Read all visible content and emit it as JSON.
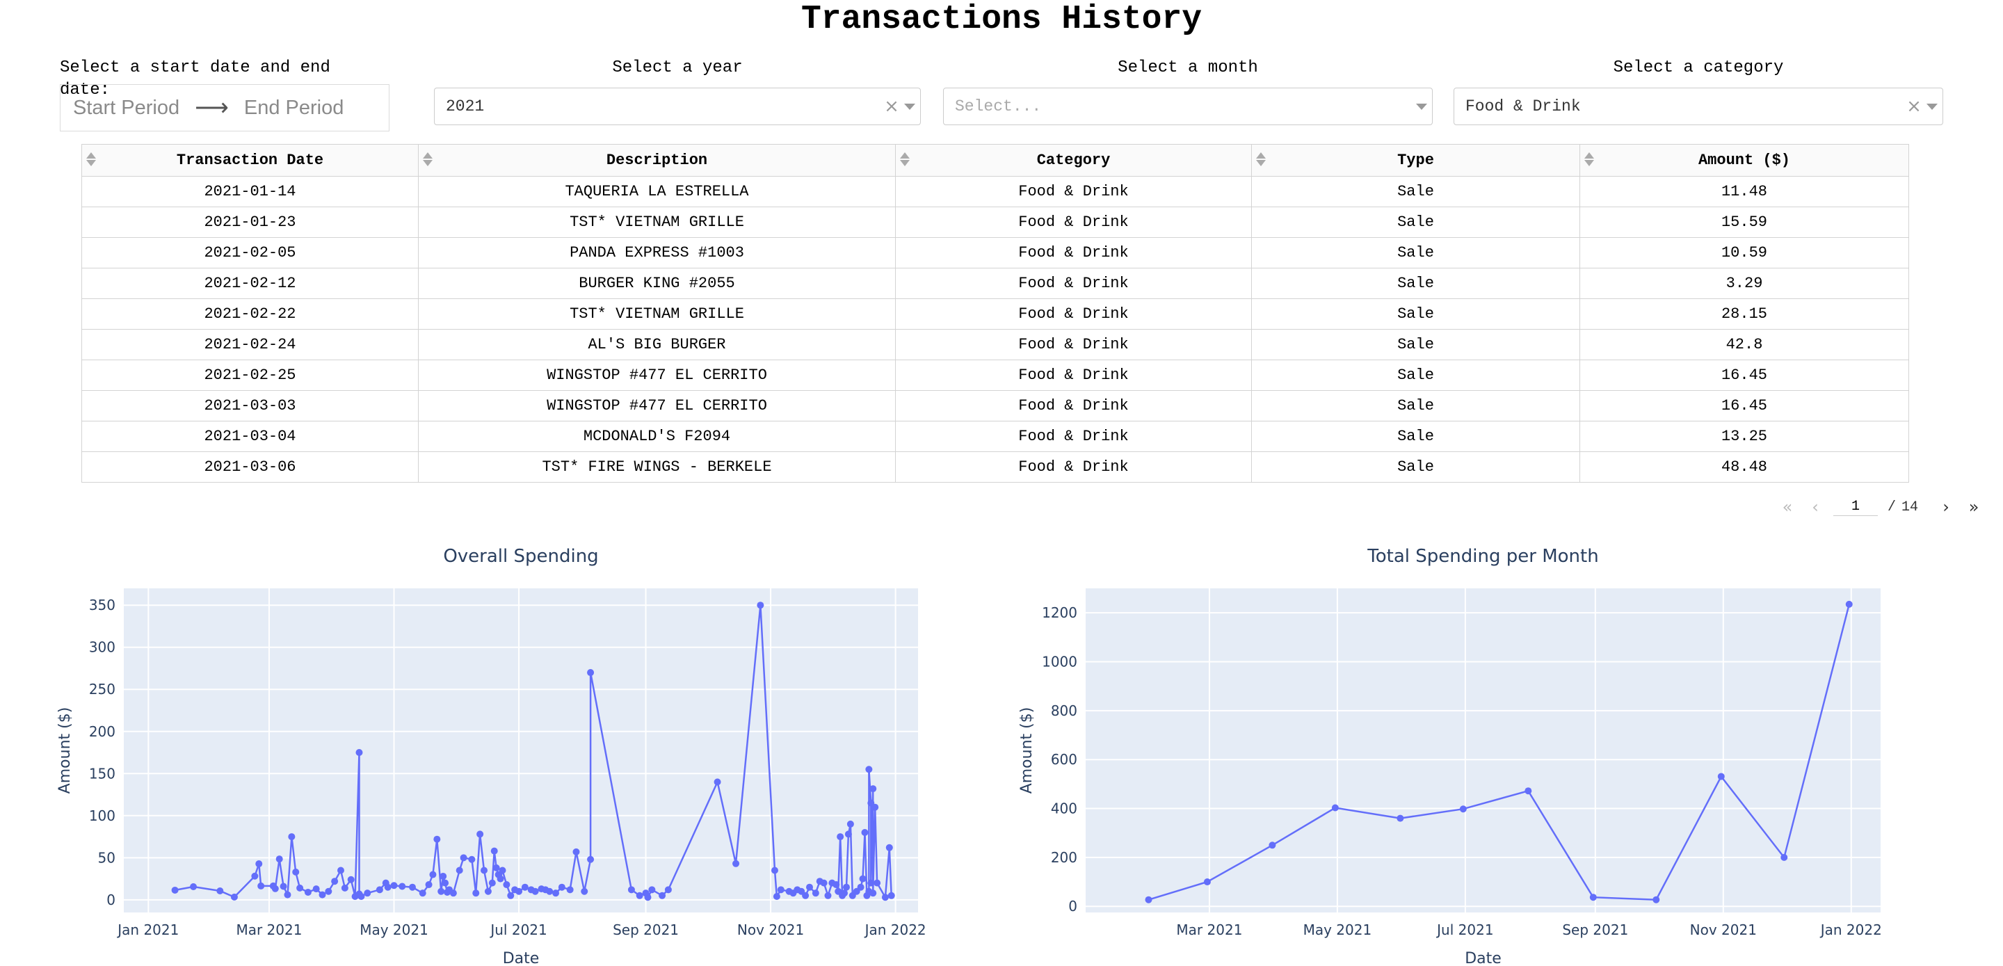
{
  "page": {
    "title": "Transactions History"
  },
  "filters": {
    "date_range": {
      "label": "Select a start date and end date:",
      "start_placeholder": "Start Period",
      "end_placeholder": "End Period"
    },
    "year": {
      "label": "Select a year",
      "value": "2021"
    },
    "month": {
      "label": "Select a month",
      "placeholder": "Select..."
    },
    "category": {
      "label": "Select a category",
      "value": "Food & Drink"
    }
  },
  "table": {
    "columns": [
      "Transaction Date",
      "Description",
      "Category",
      "Type",
      "Amount ($)"
    ],
    "rows": [
      [
        "2021-01-14",
        "TAQUERIA LA ESTRELLA",
        "Food & Drink",
        "Sale",
        "11.48"
      ],
      [
        "2021-01-23",
        "TST* VIETNAM GRILLE",
        "Food & Drink",
        "Sale",
        "15.59"
      ],
      [
        "2021-02-05",
        "PANDA EXPRESS #1003",
        "Food & Drink",
        "Sale",
        "10.59"
      ],
      [
        "2021-02-12",
        "BURGER KING #2055",
        "Food & Drink",
        "Sale",
        "3.29"
      ],
      [
        "2021-02-22",
        "TST* VIETNAM GRILLE",
        "Food & Drink",
        "Sale",
        "28.15"
      ],
      [
        "2021-02-24",
        "AL'S BIG BURGER",
        "Food & Drink",
        "Sale",
        "42.8"
      ],
      [
        "2021-02-25",
        "WINGSTOP #477 EL CERRITO",
        "Food & Drink",
        "Sale",
        "16.45"
      ],
      [
        "2021-03-03",
        "WINGSTOP #477 EL CERRITO",
        "Food & Drink",
        "Sale",
        "16.45"
      ],
      [
        "2021-03-04",
        "MCDONALD'S F2094",
        "Food & Drink",
        "Sale",
        "13.25"
      ],
      [
        "2021-03-06",
        "TST* FIRE WINGS - BERKELE",
        "Food & Drink",
        "Sale",
        "48.48"
      ]
    ]
  },
  "pagination": {
    "current_page": "1",
    "separator": "/",
    "total_pages": "14"
  },
  "chart_data": [
    {
      "type": "line",
      "title": "Overall Spending",
      "xlabel": "Date",
      "ylabel": "Amount ($)",
      "xlim": [
        "2020-12-20",
        "2022-01-12"
      ],
      "ylim": [
        -15,
        370
      ],
      "yticks": [
        0,
        50,
        100,
        150,
        200,
        250,
        300,
        350
      ],
      "xticks": [
        [
          "2021-01-01",
          "Jan 2021"
        ],
        [
          "2021-03-01",
          "Mar 2021"
        ],
        [
          "2021-05-01",
          "May 2021"
        ],
        [
          "2021-07-01",
          "Jul 2021"
        ],
        [
          "2021-09-01",
          "Sep 2021"
        ],
        [
          "2021-11-01",
          "Nov 2021"
        ],
        [
          "2022-01-01",
          "Jan 2022"
        ]
      ],
      "grid": true,
      "color": "#636efa",
      "x": [
        "2021-01-14",
        "2021-01-23",
        "2021-02-05",
        "2021-02-12",
        "2021-02-22",
        "2021-02-24",
        "2021-02-25",
        "2021-03-03",
        "2021-03-04",
        "2021-03-06",
        "2021-03-08",
        "2021-03-10",
        "2021-03-12",
        "2021-03-14",
        "2021-03-16",
        "2021-03-20",
        "2021-03-24",
        "2021-03-27",
        "2021-03-30",
        "2021-04-02",
        "2021-04-05",
        "2021-04-07",
        "2021-04-10",
        "2021-04-12",
        "2021-04-14",
        "2021-04-14",
        "2021-04-15",
        "2021-04-18",
        "2021-04-24",
        "2021-04-27",
        "2021-04-28",
        "2021-05-01",
        "2021-05-05",
        "2021-05-10",
        "2021-05-15",
        "2021-05-18",
        "2021-05-20",
        "2021-05-22",
        "2021-05-24",
        "2021-05-25",
        "2021-05-26",
        "2021-05-27",
        "2021-05-28",
        "2021-05-30",
        "2021-06-02",
        "2021-06-04",
        "2021-06-08",
        "2021-06-10",
        "2021-06-12",
        "2021-06-14",
        "2021-06-16",
        "2021-06-18",
        "2021-06-19",
        "2021-06-20",
        "2021-06-21",
        "2021-06-22",
        "2021-06-23",
        "2021-06-25",
        "2021-06-27",
        "2021-06-29",
        "2021-07-01",
        "2021-07-04",
        "2021-07-07",
        "2021-07-09",
        "2021-07-12",
        "2021-07-14",
        "2021-07-16",
        "2021-07-19",
        "2021-07-22",
        "2021-07-26",
        "2021-07-29",
        "2021-08-02",
        "2021-08-05",
        "2021-08-05",
        "2021-08-25",
        "2021-08-29",
        "2021-09-01",
        "2021-09-02",
        "2021-09-04",
        "2021-09-09",
        "2021-09-12",
        "2021-10-06",
        "2021-10-15",
        "2021-10-27",
        "2021-11-03",
        "2021-11-04",
        "2021-11-06",
        "2021-11-10",
        "2021-11-12",
        "2021-11-14",
        "2021-11-16",
        "2021-11-18",
        "2021-11-20",
        "2021-11-23",
        "2021-11-25",
        "2021-11-27",
        "2021-11-29",
        "2021-12-01",
        "2021-12-03",
        "2021-12-04",
        "2021-12-05",
        "2021-12-06",
        "2021-12-07",
        "2021-12-08",
        "2021-12-09",
        "2021-12-10",
        "2021-12-11",
        "2021-12-13",
        "2021-12-15",
        "2021-12-16",
        "2021-12-17",
        "2021-12-18",
        "2021-12-19",
        "2021-12-19",
        "2021-12-20",
        "2021-12-20",
        "2021-12-21",
        "2021-12-21",
        "2021-12-22",
        "2021-12-23",
        "2021-12-27",
        "2021-12-29",
        "2021-12-30"
      ],
      "y": [
        11.48,
        15.59,
        10.59,
        3.29,
        28.15,
        42.8,
        16.45,
        16.45,
        13.25,
        48.48,
        16,
        6,
        75,
        33,
        14,
        9,
        13,
        6,
        10,
        22,
        35,
        14,
        24,
        4,
        175,
        7,
        4,
        8,
        12,
        20,
        15,
        17,
        16,
        15,
        8,
        18,
        30,
        72,
        10,
        28,
        20,
        9,
        12,
        8,
        35,
        50,
        48,
        8,
        78,
        35,
        10,
        20,
        58,
        38,
        30,
        25,
        35,
        18,
        5,
        12,
        10,
        15,
        12,
        10,
        13,
        12,
        10,
        8,
        15,
        12,
        57,
        10,
        48,
        270,
        12,
        5,
        8,
        3,
        12,
        5,
        12,
        140,
        43,
        350,
        35,
        4,
        12,
        10,
        8,
        12,
        10,
        5,
        15,
        8,
        22,
        20,
        5,
        20,
        18,
        10,
        75,
        5,
        8,
        15,
        78,
        90,
        5,
        10,
        15,
        25,
        80,
        5,
        10,
        155,
        115,
        20,
        132,
        8,
        110,
        20,
        3,
        62,
        5
      ]
    },
    {
      "type": "line",
      "title": "Total Spending per Month",
      "xlabel": "Date",
      "ylabel": "Amount ($)",
      "xlim": [
        "2021-01-01",
        "2022-01-15"
      ],
      "ylim": [
        -25,
        1300
      ],
      "yticks": [
        0,
        200,
        400,
        600,
        800,
        1000,
        1200
      ],
      "xticks": [
        [
          "2021-03-01",
          "Mar 2021"
        ],
        [
          "2021-05-01",
          "May 2021"
        ],
        [
          "2021-07-01",
          "Jul 2021"
        ],
        [
          "2021-09-01",
          "Sep 2021"
        ],
        [
          "2021-11-01",
          "Nov 2021"
        ],
        [
          "2022-01-01",
          "Jan 2022"
        ]
      ],
      "grid": true,
      "color": "#636efa",
      "x": [
        "2021-01-31",
        "2021-02-28",
        "2021-03-31",
        "2021-04-30",
        "2021-05-31",
        "2021-06-30",
        "2021-07-31",
        "2021-08-31",
        "2021-09-30",
        "2021-10-31",
        "2021-11-30",
        "2021-12-31"
      ],
      "y": [
        27,
        100,
        250,
        403,
        360,
        398,
        472,
        37,
        27,
        531,
        200,
        1235
      ]
    }
  ]
}
